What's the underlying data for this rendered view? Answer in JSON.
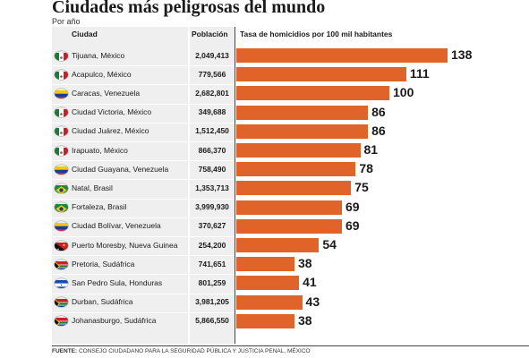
{
  "header": {
    "title": "Ciudades más peligrosas del mundo",
    "subtitle": "Por año"
  },
  "columns": {
    "city": "Ciudad",
    "population": "Población",
    "rate": "Tasa de homicidios por 100 mil habitantes"
  },
  "footer": {
    "label": "FUENTE:",
    "text": "CONSEJO CIUDADANO PARA LA SEGURIDAD PÚBLICA Y JUSTICIA PENAL, MÉXICO"
  },
  "colors": {
    "bar": "#e0642a"
  },
  "chart_data": {
    "type": "bar",
    "orientation": "horizontal",
    "title": "Ciudades más peligrosas del mundo",
    "subtitle": "Por año",
    "xlabel": "Tasa de homicidios por 100 mil habitantes",
    "xlim": [
      0,
      138
    ],
    "grid": false,
    "rows": [
      {
        "city": "Tijuana",
        "country": "México",
        "population": "2,049,413",
        "rate": 138,
        "flag": "mexico"
      },
      {
        "city": "Acapulco",
        "country": "México",
        "population": "779,566",
        "rate": 111,
        "flag": "mexico"
      },
      {
        "city": "Caracas",
        "country": "Venezuela",
        "population": "2,682,801",
        "rate": 100,
        "flag": "venezuela"
      },
      {
        "city": "Ciudad Victoria",
        "country": "México",
        "population": "349,688",
        "rate": 86,
        "flag": "mexico"
      },
      {
        "city": "Ciudad Juárez",
        "country": "México",
        "population": "1,512,450",
        "rate": 86,
        "flag": "mexico"
      },
      {
        "city": "Irapuato",
        "country": "México",
        "population": "866,370",
        "rate": 81,
        "flag": "mexico"
      },
      {
        "city": "Ciudad Guayana",
        "country": "Venezuela",
        "population": "758,490",
        "rate": 78,
        "flag": "venezuela"
      },
      {
        "city": "Natal",
        "country": "Brasil",
        "population": "1,353,713",
        "rate": 75,
        "flag": "brazil"
      },
      {
        "city": "Fortaleza",
        "country": "Brasil",
        "population": "3,999,930",
        "rate": 69,
        "flag": "brazil"
      },
      {
        "city": "Ciudad Bolívar",
        "country": "Venezuela",
        "population": "370,627",
        "rate": 69,
        "flag": "venezuela"
      },
      {
        "city": "Puerto Moresby",
        "country": "Nueva Guinea",
        "population": "254,200",
        "rate": 54,
        "flag": "png"
      },
      {
        "city": "Pretoria",
        "country": "Sudáfrica",
        "population": "741,651",
        "rate": 38,
        "flag": "southafrica"
      },
      {
        "city": "San Pedro Sula",
        "country": "Honduras",
        "population": "801,259",
        "rate": 41,
        "flag": "honduras"
      },
      {
        "city": "Durban",
        "country": "Sudáfrica",
        "population": "3,981,205",
        "rate": 43,
        "flag": "southafrica"
      },
      {
        "city": "Johanasburgo",
        "country": "Sudáfrica",
        "population": "5,866,550",
        "rate": 38,
        "flag": "southafrica"
      }
    ]
  }
}
